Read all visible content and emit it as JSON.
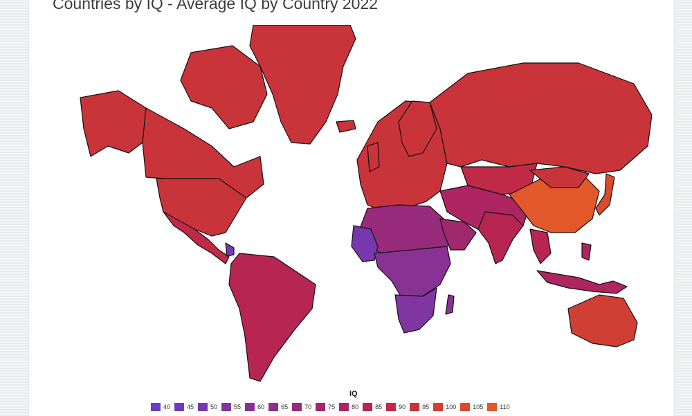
{
  "title": "Countries by IQ - Average IQ by Country 2022",
  "legend": {
    "title": "IQ",
    "items": [
      {
        "label": "40",
        "color": "#6a3fc4"
      },
      {
        "label": "45",
        "color": "#703cb8"
      },
      {
        "label": "50",
        "color": "#7838ad"
      },
      {
        "label": "55",
        "color": "#8036a0"
      },
      {
        "label": "60",
        "color": "#883394"
      },
      {
        "label": "65",
        "color": "#902f88"
      },
      {
        "label": "70",
        "color": "#982b7b"
      },
      {
        "label": "75",
        "color": "#a2286d"
      },
      {
        "label": "80",
        "color": "#ad2561"
      },
      {
        "label": "85",
        "color": "#b72553"
      },
      {
        "label": "90",
        "color": "#c02a46"
      },
      {
        "label": "95",
        "color": "#c8343a"
      },
      {
        "label": "100",
        "color": "#d03f34"
      },
      {
        "label": "105",
        "color": "#d94b2f"
      },
      {
        "label": "110",
        "color": "#e2582a"
      }
    ]
  }
}
